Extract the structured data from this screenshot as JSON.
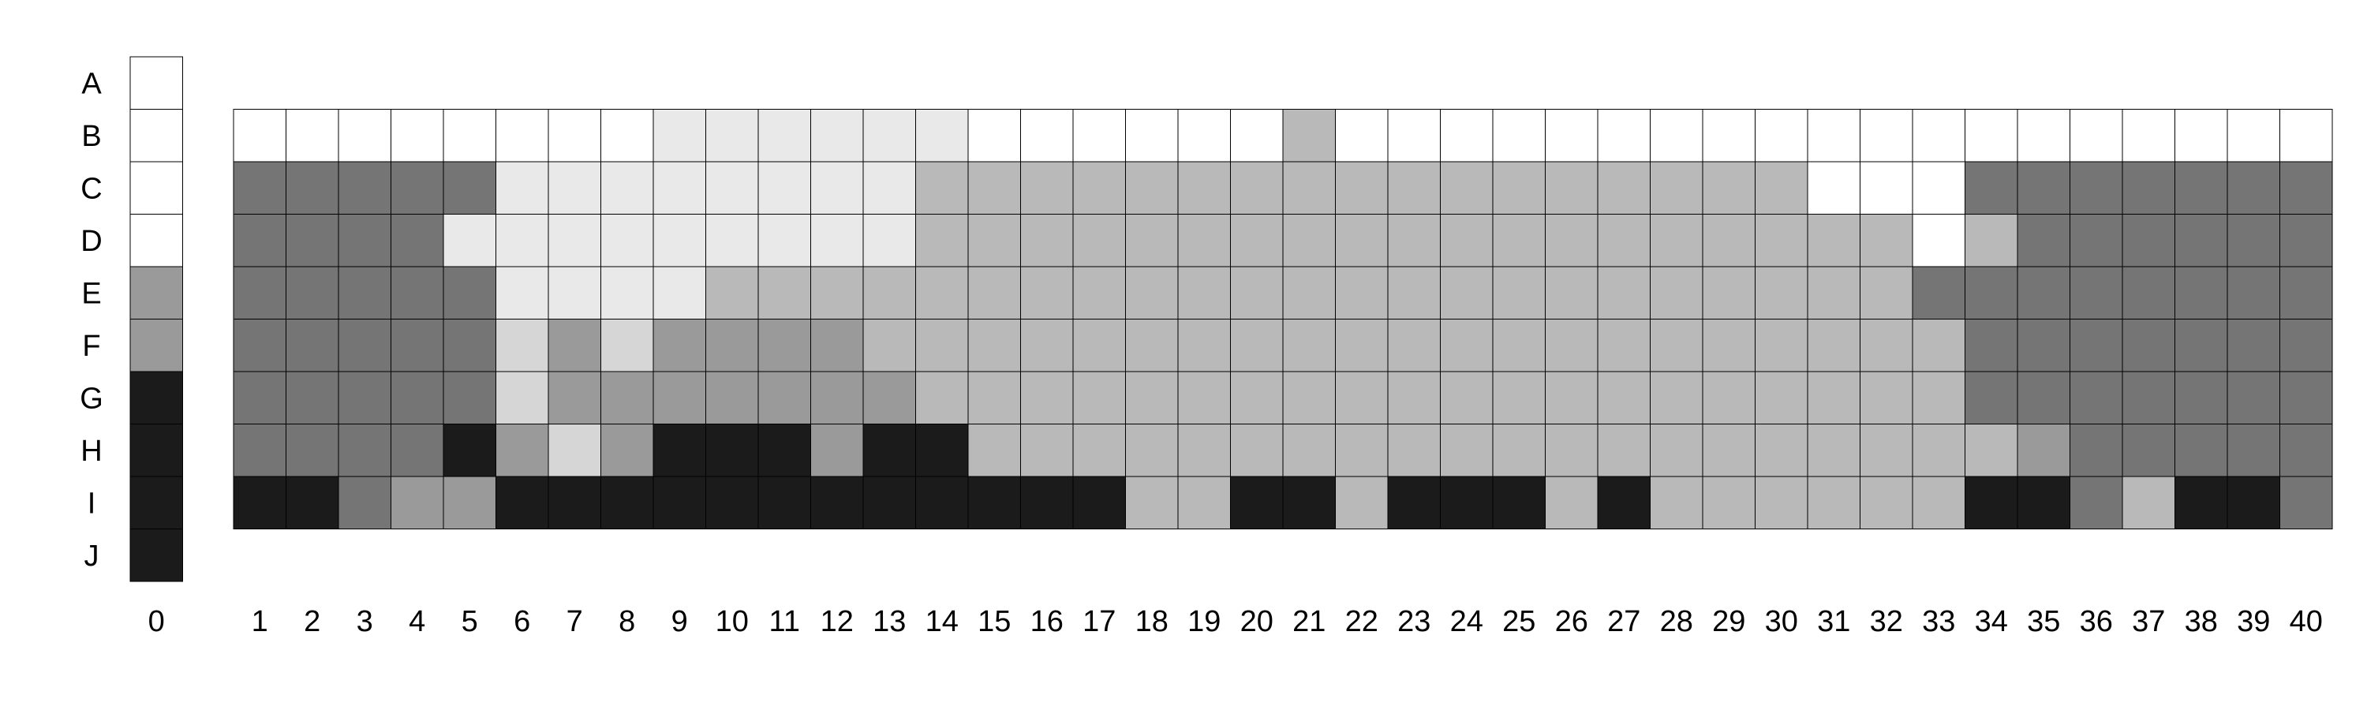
{
  "chart_data": {
    "type": "heatmap",
    "rows": [
      "A",
      "B",
      "C",
      "D",
      "E",
      "F",
      "G",
      "H",
      "I",
      "J"
    ],
    "palette": {
      "W": "#ffffff",
      "L": "#e9e9e9",
      "P": "#d6d6d6",
      "S": "#b9b9b9",
      "M": "#9a9a9a",
      "D": "#757575",
      "K": "#1b1b1b"
    },
    "key_column": {
      "label": "0",
      "values": [
        "W",
        "W",
        "W",
        "W",
        "M",
        "M",
        "K",
        "K",
        "K",
        "K"
      ]
    },
    "columns": [
      "1",
      "2",
      "3",
      "4",
      "5",
      "6",
      "7",
      "8",
      "9",
      "10",
      "11",
      "12",
      "13",
      "14",
      "15",
      "16",
      "17",
      "18",
      "19",
      "20",
      "21",
      "22",
      "23",
      "24",
      "25",
      "26",
      "27",
      "28",
      "29",
      "30",
      "31",
      "32",
      "33",
      "34",
      "35",
      "36",
      "37",
      "38",
      "39",
      "40"
    ],
    "grid_rows": [
      "B",
      "C",
      "D",
      "E",
      "F",
      "G",
      "H",
      "I"
    ],
    "grid": [
      "WWWWWWWWLLLLLLWWWWWWSWWWWWWWWWWWWWWWWWWW",
      "DDDDDLLLLLLLLSSSSSSSSSSSSSSSSSWWWDDDDDDD",
      "DDDDLLLLLLLLLSSSSSSSSSSSSSSSSSSSWSDDDDDD",
      "DDDDDLLLLSSSSSSSSSSSSSSSSSSSSSSSDDDDDDDD",
      "DDDDDPMPMMMMSSSSSSSSSSSSSSSSSSSSSDDDDDDD",
      "DDDDDPMMMMMMMSSSSSSSSSSSSSSSSSSSSDDDDDDD",
      "DDDDKMPMKKKMKKSSSSSSSSSSSSSSSSSSSSMDDDDD",
      "KKDMMKKKKKKKKKKKKSSKKSKKKSKSSSSSSKKDSKKD"
    ]
  }
}
